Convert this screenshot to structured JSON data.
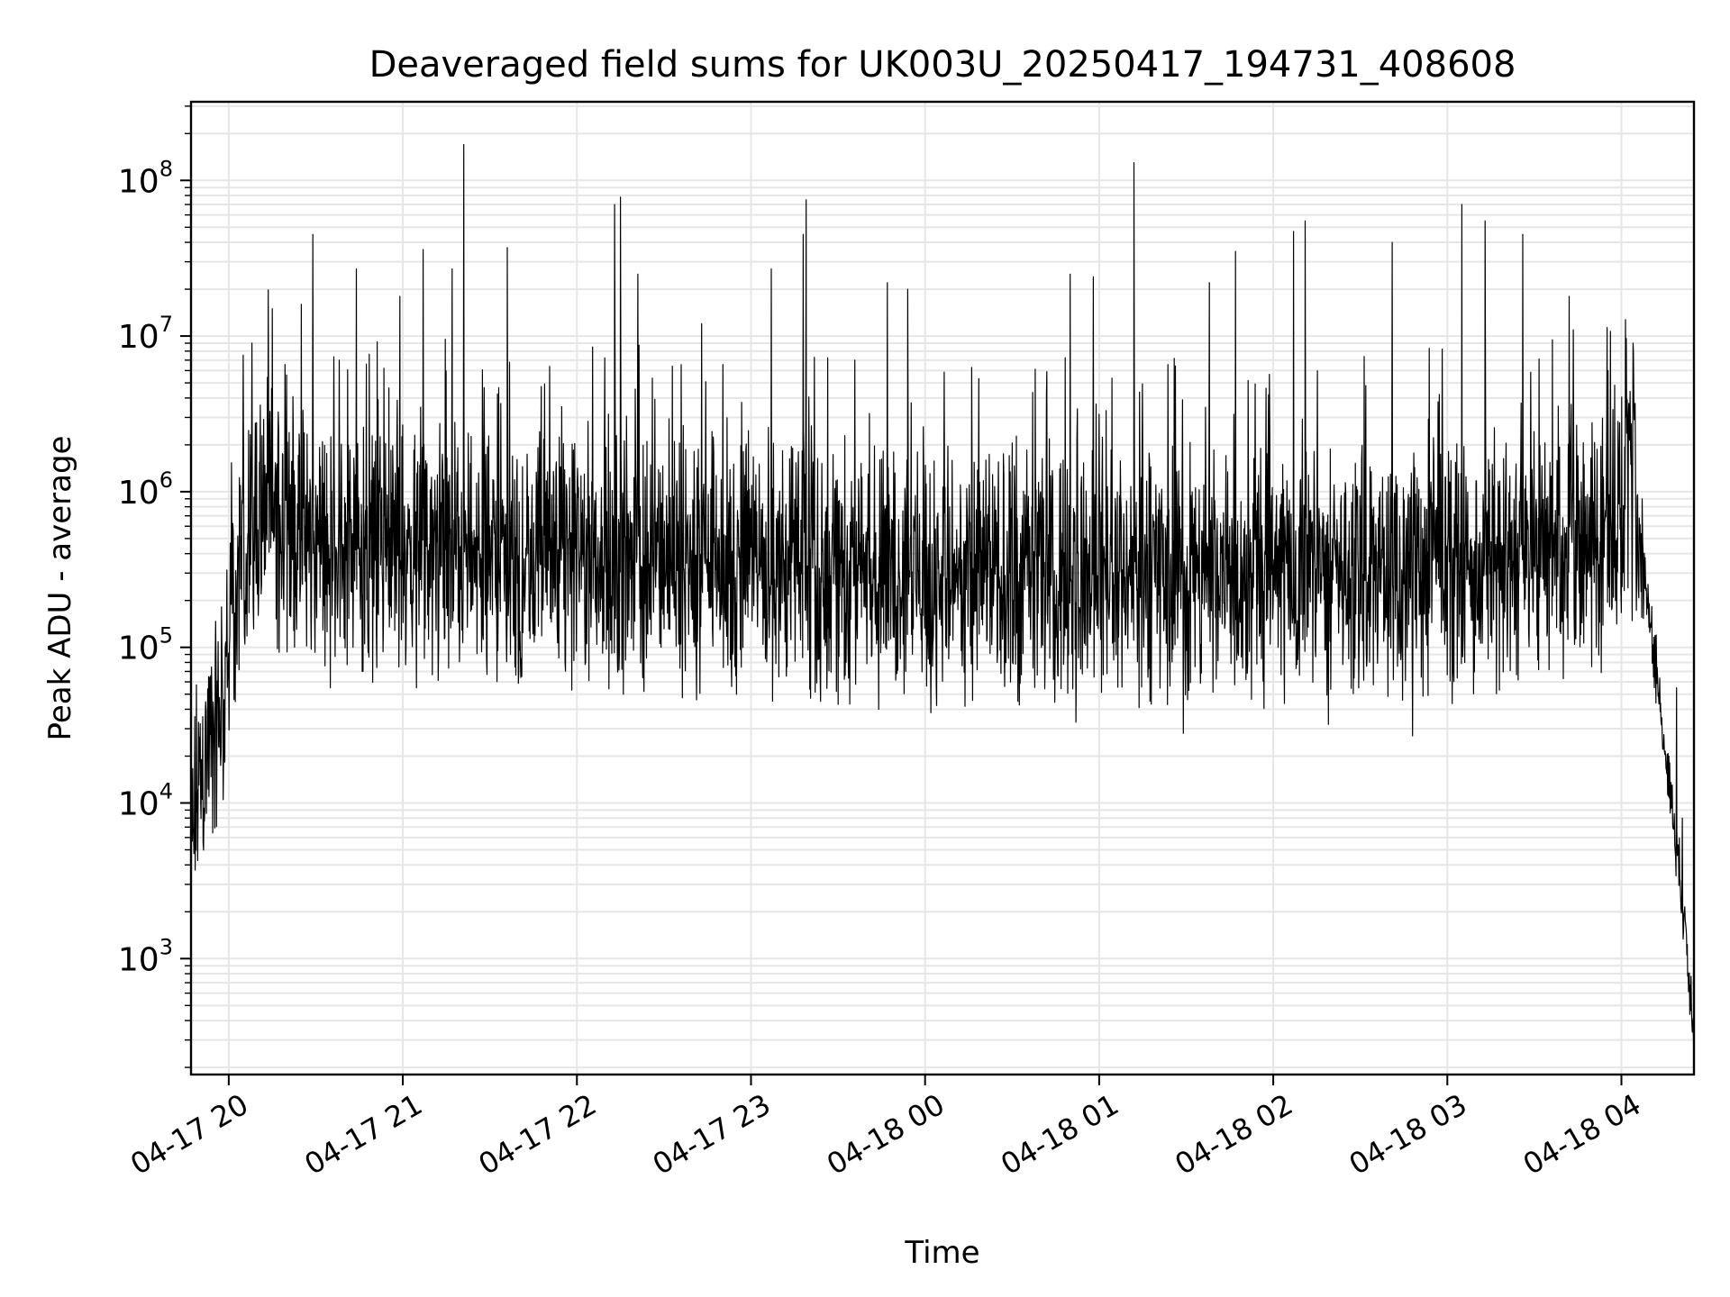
{
  "chart_data": {
    "type": "line",
    "title": "Deaveraged field sums for UK003U_20250417_194731_408608",
    "xlabel": "Time",
    "ylabel": "Peak ADU - average",
    "yscale": "log",
    "grid": true,
    "xlim": [
      "2025-04-17 19:47",
      "2025-04-18 04:25"
    ],
    "ylim": [
      180,
      320000000
    ],
    "x_ticks": [
      {
        "value": "2025-04-17 20:00",
        "label": "04-17 20"
      },
      {
        "value": "2025-04-17 21:00",
        "label": "04-17 21"
      },
      {
        "value": "2025-04-17 22:00",
        "label": "04-17 22"
      },
      {
        "value": "2025-04-17 23:00",
        "label": "04-17 23"
      },
      {
        "value": "2025-04-18 00:00",
        "label": "04-18 00"
      },
      {
        "value": "2025-04-18 01:00",
        "label": "04-18 01"
      },
      {
        "value": "2025-04-18 02:00",
        "label": "04-18 02"
      },
      {
        "value": "2025-04-18 03:00",
        "label": "04-18 03"
      },
      {
        "value": "2025-04-18 04:00",
        "label": "04-18 04"
      }
    ],
    "y_ticks": [
      {
        "value": 1000,
        "base": "10",
        "exp": "3"
      },
      {
        "value": 10000,
        "base": "10",
        "exp": "4"
      },
      {
        "value": 100000,
        "base": "10",
        "exp": "5"
      },
      {
        "value": 1000000,
        "base": "10",
        "exp": "6"
      },
      {
        "value": 10000000,
        "base": "10",
        "exp": "7"
      },
      {
        "value": 100000000,
        "base": "10",
        "exp": "8"
      }
    ],
    "baseline": [
      {
        "x": "2025-04-17 19:47",
        "y": 4000
      },
      {
        "x": "2025-04-17 19:49",
        "y": 12000
      },
      {
        "x": "2025-04-17 19:52",
        "y": 20000
      },
      {
        "x": "2025-04-17 19:56",
        "y": 30000
      },
      {
        "x": "2025-04-17 20:00",
        "y": 90000
      },
      {
        "x": "2025-04-17 20:04",
        "y": 350000
      },
      {
        "x": "2025-04-17 20:08",
        "y": 700000
      },
      {
        "x": "2025-04-17 20:12",
        "y": 900000
      },
      {
        "x": "2025-04-17 20:16",
        "y": 800000
      },
      {
        "x": "2025-04-17 20:22",
        "y": 500000
      },
      {
        "x": "2025-04-17 20:40",
        "y": 450000
      },
      {
        "x": "2025-04-17 21:30",
        "y": 400000
      },
      {
        "x": "2025-04-17 22:30",
        "y": 360000
      },
      {
        "x": "2025-04-17 23:30",
        "y": 330000
      },
      {
        "x": "2025-04-18 00:30",
        "y": 300000
      },
      {
        "x": "2025-04-18 01:30",
        "y": 310000
      },
      {
        "x": "2025-04-18 02:30",
        "y": 330000
      },
      {
        "x": "2025-04-18 03:30",
        "y": 340000
      },
      {
        "x": "2025-04-18 03:55",
        "y": 550000
      },
      {
        "x": "2025-04-18 04:02",
        "y": 900000
      },
      {
        "x": "2025-04-18 04:06",
        "y": 600000
      },
      {
        "x": "2025-04-18 04:10",
        "y": 150000
      },
      {
        "x": "2025-04-18 04:14",
        "y": 30000
      },
      {
        "x": "2025-04-18 04:18",
        "y": 8000
      },
      {
        "x": "2025-04-18 04:22",
        "y": 1500
      },
      {
        "x": "2025-04-18 04:25",
        "y": 350
      }
    ],
    "peaks": [
      {
        "x": "2025-04-17 20:08",
        "y": 9000000
      },
      {
        "x": "2025-04-17 20:15",
        "y": 15000000
      },
      {
        "x": "2025-04-17 20:25",
        "y": 16000000
      },
      {
        "x": "2025-04-17 20:29",
        "y": 45000000
      },
      {
        "x": "2025-04-17 20:44",
        "y": 27000000
      },
      {
        "x": "2025-04-17 20:59",
        "y": 18000000
      },
      {
        "x": "2025-04-17 21:07",
        "y": 36000000
      },
      {
        "x": "2025-04-17 21:17",
        "y": 27000000
      },
      {
        "x": "2025-04-17 21:21",
        "y": 170000000
      },
      {
        "x": "2025-04-17 21:36",
        "y": 37000000
      },
      {
        "x": "2025-04-17 22:13",
        "y": 70000000
      },
      {
        "x": "2025-04-17 22:15",
        "y": 78000000
      },
      {
        "x": "2025-04-17 22:21",
        "y": 25000000
      },
      {
        "x": "2025-04-17 22:43",
        "y": 12000000
      },
      {
        "x": "2025-04-17 23:07",
        "y": 27000000
      },
      {
        "x": "2025-04-17 23:18",
        "y": 45000000
      },
      {
        "x": "2025-04-17 23:19",
        "y": 75000000
      },
      {
        "x": "2025-04-17 23:47",
        "y": 22000000
      },
      {
        "x": "2025-04-17 23:54",
        "y": 20000000
      },
      {
        "x": "2025-04-18 00:50",
        "y": 25000000
      },
      {
        "x": "2025-04-18 00:58",
        "y": 24000000
      },
      {
        "x": "2025-04-18 01:12",
        "y": 130000000
      },
      {
        "x": "2025-04-18 01:38",
        "y": 22000000
      },
      {
        "x": "2025-04-18 01:47",
        "y": 35000000
      },
      {
        "x": "2025-04-18 02:07",
        "y": 47000000
      },
      {
        "x": "2025-04-18 02:11",
        "y": 55000000
      },
      {
        "x": "2025-04-18 02:41",
        "y": 40000000
      },
      {
        "x": "2025-04-18 03:05",
        "y": 70000000
      },
      {
        "x": "2025-04-18 03:13",
        "y": 55000000
      },
      {
        "x": "2025-04-18 03:26",
        "y": 45000000
      },
      {
        "x": "2025-04-18 03:42",
        "y": 18000000
      },
      {
        "x": "2025-04-18 04:04",
        "y": 9000000
      }
    ],
    "dips": [
      {
        "x": "2025-04-17 20:21",
        "y": 160000
      },
      {
        "x": "2025-04-17 20:35",
        "y": 55000
      },
      {
        "x": "2025-04-17 20:46",
        "y": 70000
      },
      {
        "x": "2025-04-17 21:41",
        "y": 65000
      },
      {
        "x": "2025-04-17 22:16",
        "y": 50000
      },
      {
        "x": "2025-04-17 22:55",
        "y": 50000
      },
      {
        "x": "2025-04-17 23:44",
        "y": 40000
      },
      {
        "x": "2025-04-18 00:02",
        "y": 38000
      },
      {
        "x": "2025-04-18 00:32",
        "y": 45000
      },
      {
        "x": "2025-04-18 00:52",
        "y": 33000
      },
      {
        "x": "2025-04-18 01:29",
        "y": 28000
      },
      {
        "x": "2025-04-18 02:19",
        "y": 32000
      },
      {
        "x": "2025-04-18 02:48",
        "y": 27000
      },
      {
        "x": "2025-04-18 04:12",
        "y": 120000
      },
      {
        "x": "2025-04-18 04:19",
        "y": 55000
      },
      {
        "x": "2025-04-18 04:21",
        "y": 8000
      }
    ]
  }
}
